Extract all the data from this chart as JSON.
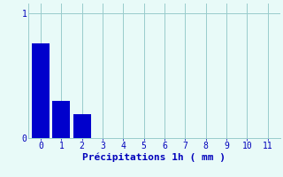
{
  "categories": [
    0,
    1,
    2,
    3,
    4,
    5,
    6,
    7,
    8,
    9,
    10,
    11
  ],
  "values": [
    0.76,
    0.3,
    0.19,
    0.0,
    0.0,
    0.0,
    0.0,
    0.0,
    0.0,
    0.0,
    0.0,
    0.0
  ],
  "bar_color": "#0000cc",
  "bar_edge_color": "#2266ee",
  "background_color": "#e8faf8",
  "text_color": "#0000bb",
  "grid_color": "#99cccc",
  "xlabel": "Précipitations 1h ( mm )",
  "ylim": [
    0,
    1.08
  ],
  "xlim": [
    -0.6,
    11.6
  ],
  "yticks": [
    0,
    1
  ],
  "xticks": [
    0,
    1,
    2,
    3,
    4,
    5,
    6,
    7,
    8,
    9,
    10,
    11
  ],
  "xlabel_fontsize": 8,
  "tick_fontsize": 7,
  "bar_width": 0.85
}
